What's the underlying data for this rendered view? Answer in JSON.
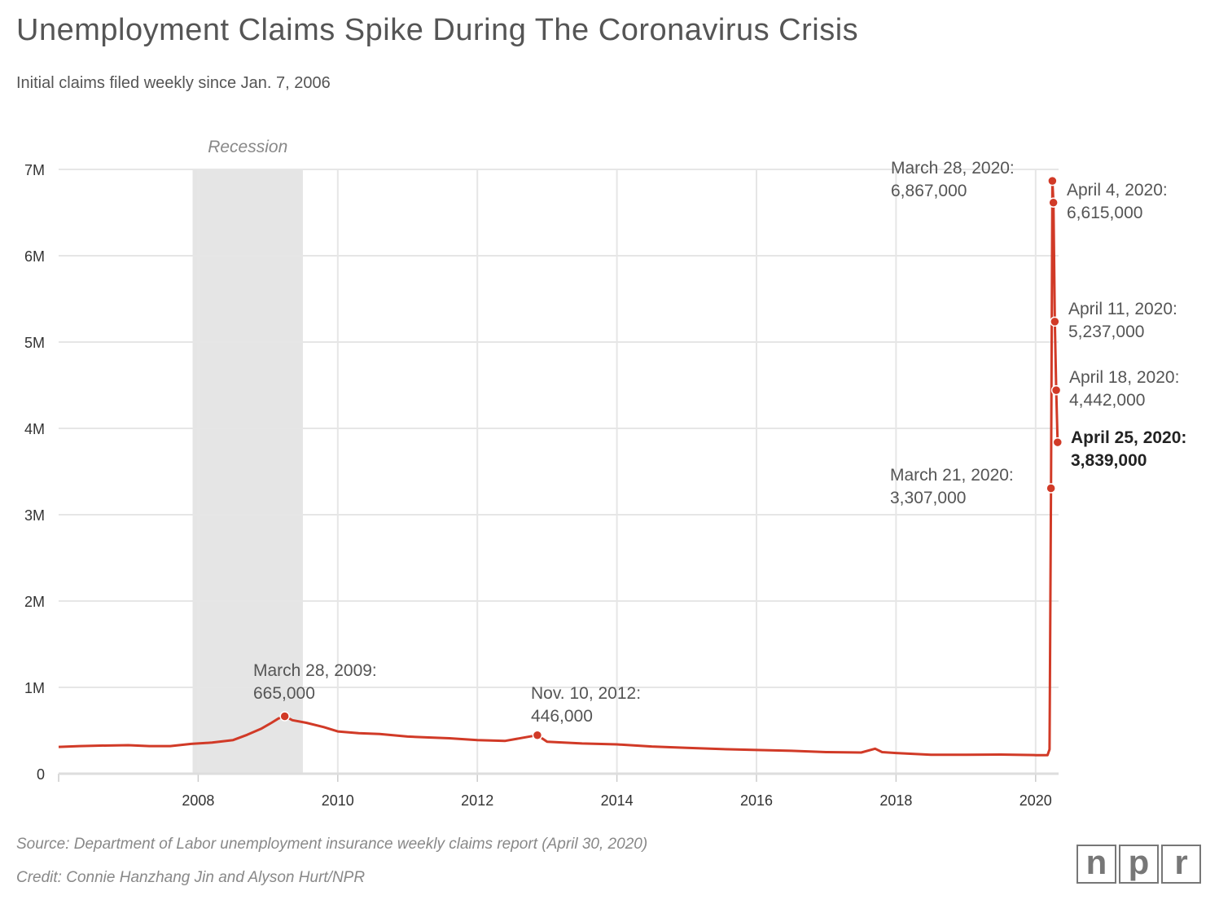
{
  "title": "Unemployment Claims Spike During The Coronavirus Crisis",
  "subtitle": "Initial claims filed weekly since Jan. 7, 2006",
  "source": "Source: Department of Labor unemployment insurance weekly claims report (April 30, 2020)",
  "credit": "Credit: Connie Hanzhang Jin and Alyson Hurt/NPR",
  "logo": [
    "n",
    "p",
    "r"
  ],
  "colors": {
    "line": "#d13a27",
    "recession": "#e5e5e5",
    "grid": "#e6e6e6"
  },
  "chart_data": {
    "type": "line",
    "title": "Unemployment Claims Spike During The Coronavirus Crisis",
    "xlabel": "",
    "ylabel": "Initial claims",
    "xlim": [
      2006.0,
      2020.33
    ],
    "ylim": [
      0,
      7000000
    ],
    "grid": true,
    "y_ticks": [
      {
        "v": 0,
        "label": "0"
      },
      {
        "v": 1000000,
        "label": "1M"
      },
      {
        "v": 2000000,
        "label": "2M"
      },
      {
        "v": 3000000,
        "label": "3M"
      },
      {
        "v": 4000000,
        "label": "4M"
      },
      {
        "v": 5000000,
        "label": "5M"
      },
      {
        "v": 6000000,
        "label": "6M"
      },
      {
        "v": 7000000,
        "label": "7M"
      }
    ],
    "x_ticks": [
      {
        "v": 2006,
        "label": ""
      },
      {
        "v": 2008,
        "label": "2008"
      },
      {
        "v": 2010,
        "label": "2010"
      },
      {
        "v": 2012,
        "label": "2012"
      },
      {
        "v": 2014,
        "label": "2014"
      },
      {
        "v": 2016,
        "label": "2016"
      },
      {
        "v": 2018,
        "label": "2018"
      },
      {
        "v": 2020,
        "label": "2020"
      }
    ],
    "recession": {
      "label": "Recession",
      "start": 2007.92,
      "end": 2009.5
    },
    "series": [
      {
        "name": "Initial claims",
        "x": [
          2006.0,
          2006.3,
          2006.6,
          2007.0,
          2007.3,
          2007.6,
          2007.9,
          2008.2,
          2008.5,
          2008.7,
          2008.9,
          2009.05,
          2009.15,
          2009.24,
          2009.35,
          2009.55,
          2009.8,
          2010.0,
          2010.3,
          2010.6,
          2011.0,
          2011.3,
          2011.6,
          2012.0,
          2012.4,
          2012.86,
          2013.0,
          2013.5,
          2014.0,
          2014.5,
          2015.0,
          2015.5,
          2016.0,
          2016.5,
          2017.0,
          2017.5,
          2017.7,
          2017.8,
          2018.0,
          2018.5,
          2019.0,
          2019.5,
          2020.0,
          2020.17,
          2020.2,
          2020.22,
          2020.24,
          2020.255,
          2020.275,
          2020.295,
          2020.315
        ],
        "y": [
          310000,
          320000,
          325000,
          330000,
          320000,
          320000,
          345000,
          360000,
          390000,
          450000,
          520000,
          590000,
          640000,
          665000,
          620000,
          590000,
          540000,
          490000,
          470000,
          460000,
          430000,
          420000,
          410000,
          390000,
          380000,
          446000,
          370000,
          350000,
          340000,
          315000,
          300000,
          285000,
          275000,
          265000,
          250000,
          245000,
          290000,
          250000,
          240000,
          220000,
          220000,
          222000,
          215000,
          215000,
          282000,
          3307000,
          6867000,
          6615000,
          5237000,
          4442000,
          3839000
        ]
      }
    ],
    "annotations": [
      {
        "x": 2009.24,
        "y": 665000,
        "date": "March 28, 2009:",
        "value": "665,000",
        "bold": false
      },
      {
        "x": 2012.86,
        "y": 446000,
        "date": "Nov. 10, 2012:",
        "value": "446,000",
        "bold": false
      },
      {
        "x": 2020.22,
        "y": 3307000,
        "date": "March 21, 2020:",
        "value": "3,307,000",
        "bold": false
      },
      {
        "x": 2020.24,
        "y": 6867000,
        "date": "March 28, 2020:",
        "value": "6,867,000",
        "bold": false
      },
      {
        "x": 2020.255,
        "y": 6615000,
        "date": "April 4, 2020:",
        "value": "6,615,000",
        "bold": false
      },
      {
        "x": 2020.275,
        "y": 5237000,
        "date": "April 11, 2020:",
        "value": "5,237,000",
        "bold": false
      },
      {
        "x": 2020.295,
        "y": 4442000,
        "date": "April 18, 2020:",
        "value": "4,442,000",
        "bold": false
      },
      {
        "x": 2020.315,
        "y": 3839000,
        "date": "April 25, 2020:",
        "value": "3,839,000",
        "bold": true
      }
    ]
  }
}
